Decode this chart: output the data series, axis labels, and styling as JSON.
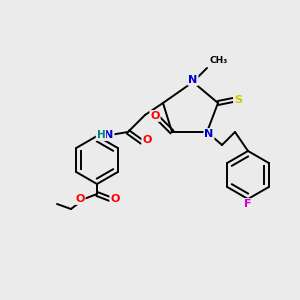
{
  "bg_color": "#ebebeb",
  "atom_colors": {
    "C": "#000000",
    "N": "#0000cc",
    "O": "#ff0000",
    "S": "#cccc00",
    "F": "#cc00cc",
    "H": "#008080"
  },
  "figsize": [
    3.0,
    3.0
  ],
  "dpi": 100
}
